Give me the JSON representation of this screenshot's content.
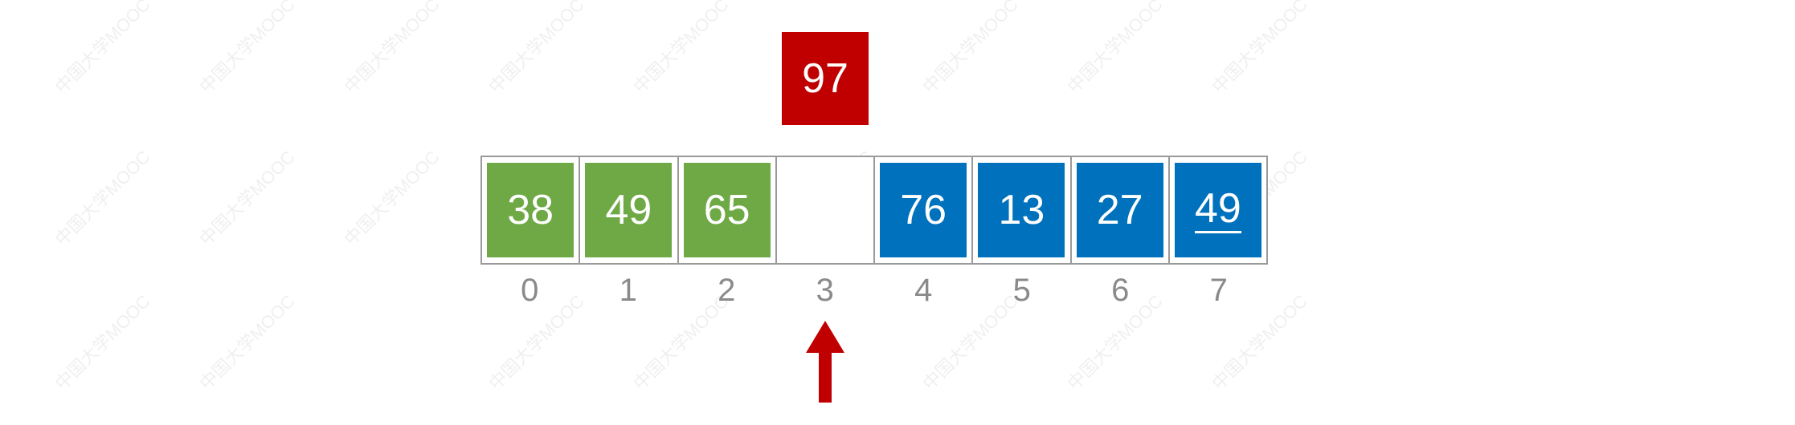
{
  "key": {
    "value": "97",
    "color": "#c00000"
  },
  "array": {
    "cells": [
      {
        "index": "0",
        "value": "38",
        "state": "sorted"
      },
      {
        "index": "1",
        "value": "49",
        "state": "sorted"
      },
      {
        "index": "2",
        "value": "65",
        "state": "sorted"
      },
      {
        "index": "3",
        "value": "",
        "state": "empty"
      },
      {
        "index": "4",
        "value": "76",
        "state": "unsorted"
      },
      {
        "index": "5",
        "value": "13",
        "state": "unsorted"
      },
      {
        "index": "6",
        "value": "27",
        "state": "unsorted"
      },
      {
        "index": "7",
        "value": "49",
        "state": "unsorted",
        "underlined": true
      }
    ],
    "colors": {
      "sorted": "#6ea945",
      "unsorted": "#0071bc",
      "border": "#9a9a9a",
      "index_text": "#8a8a8a"
    }
  },
  "pointer": {
    "icon": "up-arrow-icon",
    "target_index": 3,
    "color": "#c00000"
  },
  "watermark": {
    "text": "中国大学MOOC"
  }
}
